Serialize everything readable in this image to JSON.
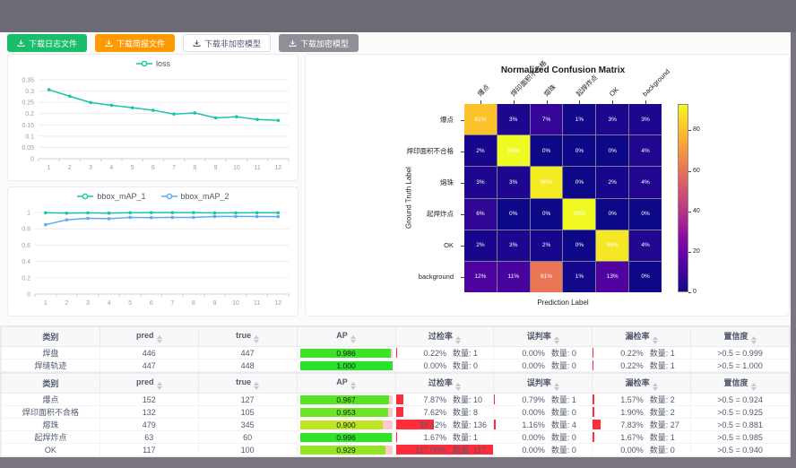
{
  "toolbar": {
    "buttons": [
      {
        "label": "下载日志文件",
        "style": "green"
      },
      {
        "label": "下载简报文件",
        "style": "orange"
      },
      {
        "label": "下载非加密模型",
        "style": "plain"
      },
      {
        "label": "下载加密模型",
        "style": "gray"
      }
    ]
  },
  "chart_data": [
    {
      "type": "line",
      "name": "loss-curve",
      "title": "",
      "x": [
        1,
        2,
        3,
        4,
        5,
        6,
        7,
        8,
        9,
        10,
        11,
        12
      ],
      "series": [
        {
          "name": "loss",
          "color": "#19c5a6",
          "values": [
            0.306,
            0.277,
            0.249,
            0.237,
            0.226,
            0.215,
            0.198,
            0.203,
            0.181,
            0.186,
            0.174,
            0.17
          ]
        }
      ],
      "ylim": [
        0,
        0.35
      ],
      "yticks": [
        0,
        0.05,
        0.1,
        0.15,
        0.2,
        0.25,
        0.3,
        0.35
      ],
      "grid": true,
      "legend_position": "top"
    },
    {
      "type": "line",
      "name": "bbox-map-curve",
      "title": "",
      "x": [
        1,
        2,
        3,
        4,
        5,
        6,
        7,
        8,
        9,
        10,
        11,
        12
      ],
      "series": [
        {
          "name": "bbox_mAP_1",
          "color": "#19c5a6",
          "values": [
            0.997,
            0.992,
            0.996,
            0.992,
            0.997,
            0.998,
            0.998,
            0.998,
            0.995,
            0.996,
            0.997,
            0.997
          ]
        },
        {
          "name": "bbox_mAP_2",
          "color": "#5dacf2",
          "values": [
            0.85,
            0.91,
            0.928,
            0.924,
            0.94,
            0.937,
            0.94,
            0.939,
            0.95,
            0.952,
            0.95,
            0.949
          ]
        }
      ],
      "ylim": [
        0,
        1
      ],
      "yticks": [
        0,
        0.2,
        0.4,
        0.6,
        0.8,
        1
      ],
      "grid": true,
      "legend_position": "top"
    },
    {
      "type": "heatmap",
      "title": "Normalized Confusion Matrix",
      "xlabel": "Prediction Label",
      "ylabel": "Ground Truth Label",
      "categories": [
        "爆点",
        "焊印面积不合格",
        "熔珠",
        "起焊炸点",
        "OK",
        "background"
      ],
      "matrix": [
        [
          81,
          3,
          7,
          1,
          3,
          3
        ],
        [
          2,
          93,
          0,
          0,
          0,
          4
        ],
        [
          3,
          3,
          90,
          0,
          2,
          4
        ],
        [
          6,
          0,
          0,
          93,
          0,
          0
        ],
        [
          2,
          3,
          2,
          0,
          89,
          4
        ],
        [
          12,
          11,
          61,
          1,
          13,
          0
        ]
      ],
      "unit": "%",
      "vmax": 93,
      "colormap": "plasma",
      "colorbar_ticks": [
        0,
        20,
        40,
        60,
        80
      ]
    }
  ],
  "tables": [
    {
      "headers": [
        {
          "label": "类别",
          "sortable": false
        },
        {
          "label": "pred",
          "sortable": true
        },
        {
          "label": "true",
          "sortable": true
        },
        {
          "label": "AP",
          "sortable": true
        },
        {
          "label": "过检率",
          "sortable": true
        },
        {
          "label": "误判率",
          "sortable": true
        },
        {
          "label": "漏检率",
          "sortable": true
        },
        {
          "label": "置信度",
          "sortable": true
        }
      ],
      "rows": [
        {
          "category": "焊盘",
          "pred": "446",
          "true": "447",
          "ap": {
            "label": "0.986",
            "value": 0.986
          },
          "over_rate": {
            "pct": "0.22%",
            "count": "数量: 1",
            "value": 0.22
          },
          "misjudge_rate": {
            "pct": "0.00%",
            "count": "数量: 0",
            "value": 0
          },
          "miss_rate": {
            "pct": "0.22%",
            "count": "数量: 1",
            "value": 0.22
          },
          "confidence": ">0.5 = 0.999"
        },
        {
          "category": "焊缝轨迹",
          "pred": "447",
          "true": "448",
          "ap": {
            "label": "1.000",
            "value": 1.0
          },
          "over_rate": {
            "pct": "0.00%",
            "count": "数量: 0",
            "value": 0
          },
          "misjudge_rate": {
            "pct": "0.00%",
            "count": "数量: 0",
            "value": 0
          },
          "miss_rate": {
            "pct": "0.22%",
            "count": "数量: 1",
            "value": 0.22
          },
          "confidence": ">0.5 = 1.000"
        }
      ]
    },
    {
      "headers": [
        {
          "label": "类别",
          "sortable": false
        },
        {
          "label": "pred",
          "sortable": true
        },
        {
          "label": "true",
          "sortable": true
        },
        {
          "label": "AP",
          "sortable": true
        },
        {
          "label": "过检率",
          "sortable": true
        },
        {
          "label": "误判率",
          "sortable": true
        },
        {
          "label": "漏检率",
          "sortable": true
        },
        {
          "label": "置信度",
          "sortable": true
        }
      ],
      "rows": [
        {
          "category": "爆点",
          "pred": "152",
          "true": "127",
          "ap": {
            "label": "0.967",
            "value": 0.967
          },
          "over_rate": {
            "pct": "7.87%",
            "count": "数量: 10",
            "value": 7.87
          },
          "misjudge_rate": {
            "pct": "0.79%",
            "count": "数量: 1",
            "value": 0.79
          },
          "miss_rate": {
            "pct": "1.57%",
            "count": "数量: 2",
            "value": 1.57
          },
          "confidence": ">0.5 = 0.924"
        },
        {
          "category": "焊印面积不合格",
          "pred": "132",
          "true": "105",
          "ap": {
            "label": "0.953",
            "value": 0.953
          },
          "over_rate": {
            "pct": "7.62%",
            "count": "数量: 8",
            "value": 7.62
          },
          "misjudge_rate": {
            "pct": "0.00%",
            "count": "数量: 0",
            "value": 0
          },
          "miss_rate": {
            "pct": "1.90%",
            "count": "数量: 2",
            "value": 1.9
          },
          "confidence": ">0.5 = 0.925"
        },
        {
          "category": "熔珠",
          "pred": "479",
          "true": "345",
          "ap": {
            "label": "0.900",
            "value": 0.9
          },
          "over_rate": {
            "pct": "39.42%",
            "count": "数量: 136",
            "value": 39.42
          },
          "misjudge_rate": {
            "pct": "1.16%",
            "count": "数量: 4",
            "value": 1.16
          },
          "miss_rate": {
            "pct": "7.83%",
            "count": "数量: 27",
            "value": 7.83
          },
          "confidence": ">0.5 = 0.881"
        },
        {
          "category": "起焊炸点",
          "pred": "63",
          "true": "60",
          "ap": {
            "label": "0.996",
            "value": 0.996
          },
          "over_rate": {
            "pct": "1.67%",
            "count": "数量: 1",
            "value": 1.67
          },
          "misjudge_rate": {
            "pct": "0.00%",
            "count": "数量: 0",
            "value": 0
          },
          "miss_rate": {
            "pct": "1.67%",
            "count": "数量: 1",
            "value": 1.67
          },
          "confidence": ">0.5 = 0.985"
        },
        {
          "category": "OK",
          "pred": "117",
          "true": "100",
          "ap": {
            "label": "0.929",
            "value": 0.929
          },
          "over_rate": {
            "pct": "117.00%",
            "count": "数量: 117",
            "value": 117
          },
          "misjudge_rate": {
            "pct": "0.00%",
            "count": "数量: 0",
            "value": 0
          },
          "miss_rate": {
            "pct": "0.00%",
            "count": "数量: 0",
            "value": 0
          },
          "confidence": ">0.5 = 0.940"
        }
      ]
    }
  ]
}
